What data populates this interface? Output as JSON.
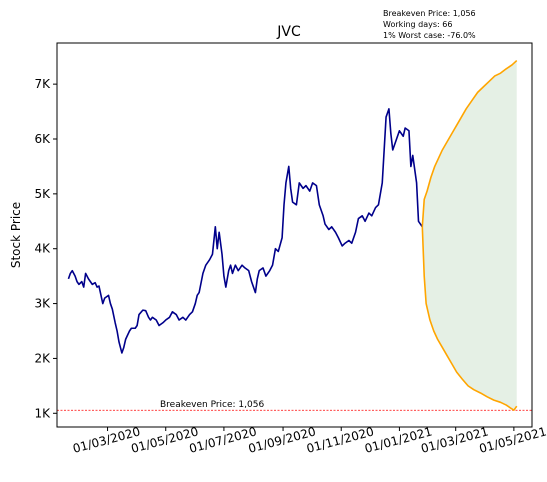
{
  "chart_data": {
    "type": "line",
    "title": "JVC",
    "ylabel": "Stock Price",
    "xlabel": "",
    "annotations": [
      "Breakeven Price: 1,056",
      "Working days: 66",
      "1% Worst case: -76.0%"
    ],
    "breakeven": {
      "value": 1056,
      "label": "Breakeven Price: 1,056"
    },
    "ylim": [
      750,
      7750
    ],
    "yticks": [
      {
        "value": 1000,
        "label": "1K"
      },
      {
        "value": 2000,
        "label": "2K"
      },
      {
        "value": 3000,
        "label": "3K"
      },
      {
        "value": 4000,
        "label": "4K"
      },
      {
        "value": 5000,
        "label": "5K"
      },
      {
        "value": 6000,
        "label": "6K"
      },
      {
        "value": 7000,
        "label": "7K"
      }
    ],
    "xlim": [
      "2020-01-08",
      "2021-05-20"
    ],
    "xticks": [
      {
        "value": "2020-03-01",
        "label": "01/03/2020"
      },
      {
        "value": "2020-05-01",
        "label": "01/05/2020"
      },
      {
        "value": "2020-07-01",
        "label": "01/07/2020"
      },
      {
        "value": "2020-09-01",
        "label": "01/09/2020"
      },
      {
        "value": "2020-11-01",
        "label": "01/11/2020"
      },
      {
        "value": "2021-01-01",
        "label": "01/01/2021"
      },
      {
        "value": "2021-03-01",
        "label": "01/03/2021"
      },
      {
        "value": "2021-05-01",
        "label": "01/05/2021"
      }
    ],
    "series": [
      {
        "role": "historical",
        "color": "#00008b",
        "points": [
          [
            "2020-01-20",
            3450
          ],
          [
            "2020-01-22",
            3550
          ],
          [
            "2020-01-24",
            3600
          ],
          [
            "2020-01-27",
            3500
          ],
          [
            "2020-01-29",
            3400
          ],
          [
            "2020-01-31",
            3350
          ],
          [
            "2020-02-03",
            3400
          ],
          [
            "2020-02-05",
            3300
          ],
          [
            "2020-02-07",
            3550
          ],
          [
            "2020-02-10",
            3450
          ],
          [
            "2020-02-12",
            3400
          ],
          [
            "2020-02-14",
            3350
          ],
          [
            "2020-02-17",
            3380
          ],
          [
            "2020-02-19",
            3300
          ],
          [
            "2020-02-21",
            3320
          ],
          [
            "2020-02-25",
            3000
          ],
          [
            "2020-02-27",
            3100
          ],
          [
            "2020-03-02",
            3150
          ],
          [
            "2020-03-04",
            3000
          ],
          [
            "2020-03-06",
            2900
          ],
          [
            "2020-03-09",
            2650
          ],
          [
            "2020-03-11",
            2500
          ],
          [
            "2020-03-13",
            2300
          ],
          [
            "2020-03-16",
            2100
          ],
          [
            "2020-03-18",
            2200
          ],
          [
            "2020-03-20",
            2350
          ],
          [
            "2020-03-24",
            2500
          ],
          [
            "2020-03-26",
            2550
          ],
          [
            "2020-03-30",
            2550
          ],
          [
            "2020-04-01",
            2600
          ],
          [
            "2020-04-03",
            2800
          ],
          [
            "2020-04-07",
            2880
          ],
          [
            "2020-04-10",
            2870
          ],
          [
            "2020-04-13",
            2750
          ],
          [
            "2020-04-15",
            2700
          ],
          [
            "2020-04-17",
            2750
          ],
          [
            "2020-04-21",
            2700
          ],
          [
            "2020-04-24",
            2600
          ],
          [
            "2020-04-28",
            2650
          ],
          [
            "2020-05-01",
            2700
          ],
          [
            "2020-05-05",
            2750
          ],
          [
            "2020-05-08",
            2850
          ],
          [
            "2020-05-12",
            2800
          ],
          [
            "2020-05-15",
            2700
          ],
          [
            "2020-05-19",
            2750
          ],
          [
            "2020-05-22",
            2700
          ],
          [
            "2020-05-26",
            2800
          ],
          [
            "2020-05-29",
            2850
          ],
          [
            "2020-06-01",
            3000
          ],
          [
            "2020-06-03",
            3150
          ],
          [
            "2020-06-05",
            3200
          ],
          [
            "2020-06-09",
            3550
          ],
          [
            "2020-06-12",
            3700
          ],
          [
            "2020-06-16",
            3800
          ],
          [
            "2020-06-19",
            3900
          ],
          [
            "2020-06-22",
            4400
          ],
          [
            "2020-06-24",
            4000
          ],
          [
            "2020-06-26",
            4300
          ],
          [
            "2020-06-29",
            3900
          ],
          [
            "2020-07-01",
            3500
          ],
          [
            "2020-07-03",
            3300
          ],
          [
            "2020-07-06",
            3600
          ],
          [
            "2020-07-08",
            3700
          ],
          [
            "2020-07-10",
            3550
          ],
          [
            "2020-07-13",
            3700
          ],
          [
            "2020-07-16",
            3600
          ],
          [
            "2020-07-20",
            3700
          ],
          [
            "2020-07-23",
            3650
          ],
          [
            "2020-07-27",
            3600
          ],
          [
            "2020-07-30",
            3400
          ],
          [
            "2020-08-03",
            3200
          ],
          [
            "2020-08-05",
            3450
          ],
          [
            "2020-08-07",
            3600
          ],
          [
            "2020-08-11",
            3650
          ],
          [
            "2020-08-14",
            3500
          ],
          [
            "2020-08-18",
            3600
          ],
          [
            "2020-08-21",
            3700
          ],
          [
            "2020-08-24",
            4000
          ],
          [
            "2020-08-27",
            3950
          ],
          [
            "2020-08-31",
            4200
          ],
          [
            "2020-09-02",
            4800
          ],
          [
            "2020-09-04",
            5200
          ],
          [
            "2020-09-07",
            5500
          ],
          [
            "2020-09-09",
            5100
          ],
          [
            "2020-09-11",
            4850
          ],
          [
            "2020-09-15",
            4800
          ],
          [
            "2020-09-18",
            5200
          ],
          [
            "2020-09-22",
            5100
          ],
          [
            "2020-09-25",
            5150
          ],
          [
            "2020-09-29",
            5050
          ],
          [
            "2020-10-02",
            5200
          ],
          [
            "2020-10-06",
            5150
          ],
          [
            "2020-10-09",
            4800
          ],
          [
            "2020-10-13",
            4600
          ],
          [
            "2020-10-15",
            4450
          ],
          [
            "2020-10-19",
            4350
          ],
          [
            "2020-10-22",
            4400
          ],
          [
            "2020-10-26",
            4300
          ],
          [
            "2020-10-29",
            4200
          ],
          [
            "2020-11-02",
            4050
          ],
          [
            "2020-11-05",
            4100
          ],
          [
            "2020-11-09",
            4150
          ],
          [
            "2020-11-12",
            4100
          ],
          [
            "2020-11-16",
            4300
          ],
          [
            "2020-11-19",
            4550
          ],
          [
            "2020-11-23",
            4600
          ],
          [
            "2020-11-26",
            4500
          ],
          [
            "2020-11-30",
            4650
          ],
          [
            "2020-12-03",
            4600
          ],
          [
            "2020-12-07",
            4750
          ],
          [
            "2020-12-10",
            4800
          ],
          [
            "2020-12-14",
            5200
          ],
          [
            "2020-12-16",
            5800
          ],
          [
            "2020-12-18",
            6400
          ],
          [
            "2020-12-21",
            6550
          ],
          [
            "2020-12-23",
            6100
          ],
          [
            "2020-12-25",
            5800
          ],
          [
            "2020-12-29",
            6000
          ],
          [
            "2021-01-01",
            6150
          ],
          [
            "2021-01-05",
            6050
          ],
          [
            "2021-01-07",
            6200
          ],
          [
            "2021-01-11",
            6150
          ],
          [
            "2021-01-13",
            5500
          ],
          [
            "2021-01-15",
            5700
          ],
          [
            "2021-01-19",
            5200
          ],
          [
            "2021-01-21",
            4500
          ],
          [
            "2021-01-25",
            4400
          ]
        ]
      },
      {
        "role": "upper-projection",
        "color": "#ffa500",
        "points": [
          [
            "2021-01-25",
            4400
          ],
          [
            "2021-01-27",
            4900
          ],
          [
            "2021-01-30",
            5050
          ],
          [
            "2021-02-03",
            5300
          ],
          [
            "2021-02-07",
            5500
          ],
          [
            "2021-02-11",
            5650
          ],
          [
            "2021-02-15",
            5800
          ],
          [
            "2021-02-20",
            5950
          ],
          [
            "2021-02-25",
            6100
          ],
          [
            "2021-03-02",
            6250
          ],
          [
            "2021-03-07",
            6400
          ],
          [
            "2021-03-12",
            6550
          ],
          [
            "2021-03-18",
            6700
          ],
          [
            "2021-03-24",
            6850
          ],
          [
            "2021-03-30",
            6950
          ],
          [
            "2021-04-05",
            7050
          ],
          [
            "2021-04-11",
            7150
          ],
          [
            "2021-04-17",
            7200
          ],
          [
            "2021-04-23",
            7280
          ],
          [
            "2021-04-29",
            7350
          ],
          [
            "2021-05-04",
            7430
          ]
        ]
      },
      {
        "role": "lower-projection",
        "color": "#ffa500",
        "points": [
          [
            "2021-01-25",
            4400
          ],
          [
            "2021-01-27",
            3500
          ],
          [
            "2021-01-29",
            3000
          ],
          [
            "2021-02-02",
            2700
          ],
          [
            "2021-02-06",
            2500
          ],
          [
            "2021-02-10",
            2350
          ],
          [
            "2021-02-15",
            2200
          ],
          [
            "2021-02-20",
            2050
          ],
          [
            "2021-02-25",
            1900
          ],
          [
            "2021-03-02",
            1750
          ],
          [
            "2021-03-08",
            1620
          ],
          [
            "2021-03-14",
            1500
          ],
          [
            "2021-03-20",
            1430
          ],
          [
            "2021-03-27",
            1370
          ],
          [
            "2021-04-03",
            1300
          ],
          [
            "2021-04-10",
            1240
          ],
          [
            "2021-04-17",
            1200
          ],
          [
            "2021-04-23",
            1150
          ],
          [
            "2021-04-28",
            1090
          ],
          [
            "2021-05-01",
            1056
          ],
          [
            "2021-05-04",
            1130
          ]
        ]
      }
    ],
    "band_color": "#e5f0e5",
    "breakeven_color": "#ff0000",
    "grid": false
  }
}
